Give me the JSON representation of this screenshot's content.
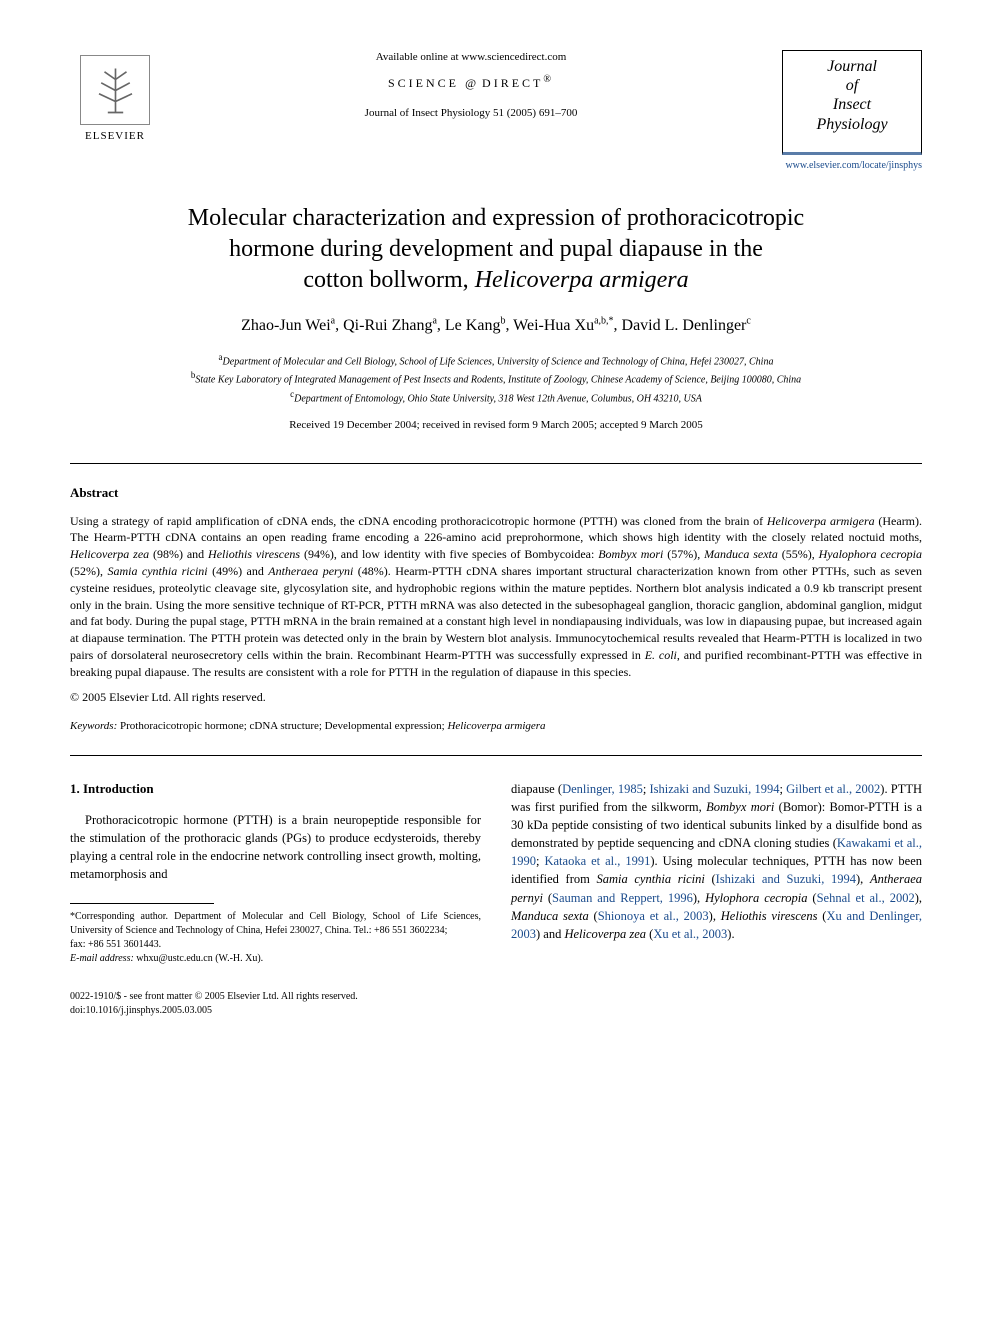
{
  "header": {
    "publisher": "ELSEVIER",
    "available_online": "Available online at www.sciencedirect.com",
    "science_direct": "SCIENCE",
    "science_direct2": "DIRECT",
    "journal_ref": "Journal of Insect Physiology 51 (2005) 691–700",
    "journal_box_line1": "Journal",
    "journal_box_line2": "of",
    "journal_box_line3": "Insect",
    "journal_box_line4": "Physiology",
    "journal_link": "www.elsevier.com/locate/jinsphys"
  },
  "title": {
    "line1": "Molecular characterization and expression of prothoracicotropic",
    "line2": "hormone during development and pupal diapause in the",
    "line3_pre": "cotton bollworm, ",
    "line3_species": "Helicoverpa armigera"
  },
  "authors": [
    {
      "name": "Zhao-Jun Wei",
      "sup": "a"
    },
    {
      "name": "Qi-Rui Zhang",
      "sup": "a"
    },
    {
      "name": "Le Kang",
      "sup": "b"
    },
    {
      "name": "Wei-Hua Xu",
      "sup": "a,b,*"
    },
    {
      "name": "David L. Denlinger",
      "sup": "c"
    }
  ],
  "affiliations": [
    {
      "sup": "a",
      "text": "Department of Molecular and Cell Biology, School of Life Sciences, University of Science and Technology of China, Hefei 230027, China"
    },
    {
      "sup": "b",
      "text": "State Key Laboratory of Integrated Management of Pest Insects and Rodents, Institute of Zoology, Chinese Academy of Science, Beijing 100080, China"
    },
    {
      "sup": "c",
      "text": "Department of Entomology, Ohio State University, 318 West 12th Avenue, Columbus, OH 43210, USA"
    }
  ],
  "dates": "Received 19 December 2004; received in revised form 9 March 2005; accepted 9 March 2005",
  "abstract": {
    "heading": "Abstract",
    "body_parts": [
      {
        "t": "Using a strategy of rapid amplification of cDNA ends, the cDNA encoding prothoracicotropic hormone (PTTH) was cloned from the brain of "
      },
      {
        "t": "Helicoverpa armigera",
        "i": true
      },
      {
        "t": " (Hearm). The Hearm-PTTH cDNA contains an open reading frame encoding a 226-amino acid preprohormone, which shows high identity with the closely related noctuid moths, "
      },
      {
        "t": "Helicoverpa zea",
        "i": true
      },
      {
        "t": " (98%) and "
      },
      {
        "t": "Heliothis virescens",
        "i": true
      },
      {
        "t": " (94%), and low identity with five species of Bombycoidea: "
      },
      {
        "t": "Bombyx mori",
        "i": true
      },
      {
        "t": " (57%), "
      },
      {
        "t": "Manduca sexta",
        "i": true
      },
      {
        "t": " (55%), "
      },
      {
        "t": "Hyalophora cecropia",
        "i": true
      },
      {
        "t": " (52%), "
      },
      {
        "t": "Samia cynthia ricini",
        "i": true
      },
      {
        "t": " (49%) and "
      },
      {
        "t": "Antheraea peryni",
        "i": true
      },
      {
        "t": " (48%). Hearm-PTTH cDNA shares important structural characterization known from other PTTHs, such as seven cysteine residues, proteolytic cleavage site, glycosylation site, and hydrophobic regions within the mature peptides. Northern blot analysis indicated a 0.9 kb transcript present only in the brain. Using the more sensitive technique of RT-PCR, PTTH mRNA was also detected in the subesophageal ganglion, thoracic ganglion, abdominal ganglion, midgut and fat body. During the pupal stage, PTTH mRNA in the brain remained at a constant high level in nondiapausing individuals, was low in diapausing pupae, but increased again at diapause termination. The PTTH protein was detected only in the brain by Western blot analysis. Immunocytochemical results revealed that Hearm-PTTH is localized in two pairs of dorsolateral neurosecretory cells within the brain. Recombinant Hearm-PTTH was successfully expressed in "
      },
      {
        "t": "E. coli",
        "i": true
      },
      {
        "t": ", and purified recombinant-PTTH was effective in breaking pupal diapause. The results are consistent with a role for PTTH in the regulation of diapause in this species."
      }
    ],
    "copyright": "© 2005 Elsevier Ltd. All rights reserved."
  },
  "keywords": {
    "label": "Keywords:",
    "text_pre": " Prothoracicotropic hormone; cDNA structure; Developmental expression; ",
    "species": "Helicoverpa armigera"
  },
  "intro": {
    "heading": "1. Introduction",
    "col1_parts": [
      {
        "t": "Prothoracicotropic hormone (PTTH) is a brain neuropeptide responsible for the stimulation of the prothoracic glands (PGs) to produce ecdysteroids, thereby playing a central role in the endocrine network controlling insect growth, molting, metamorphosis and"
      }
    ],
    "col2_parts": [
      {
        "t": "diapause ("
      },
      {
        "t": "Denlinger, 1985",
        "c": true
      },
      {
        "t": "; "
      },
      {
        "t": "Ishizaki and Suzuki, 1994",
        "c": true
      },
      {
        "t": "; "
      },
      {
        "t": "Gilbert et al., 2002",
        "c": true
      },
      {
        "t": "). PTTH was first purified from the silkworm, "
      },
      {
        "t": "Bombyx mori",
        "i": true
      },
      {
        "t": " (Bomor): Bomor-PTTH is a 30 kDa peptide consisting of two identical subunits linked by a disulfide bond as demonstrated by peptide sequencing and cDNA cloning studies ("
      },
      {
        "t": "Kawakami et al., 1990",
        "c": true
      },
      {
        "t": "; "
      },
      {
        "t": "Kataoka et al., 1991",
        "c": true
      },
      {
        "t": "). Using molecular techniques, PTTH has now been identified from "
      },
      {
        "t": "Samia cynthia ricini",
        "i": true
      },
      {
        "t": " ("
      },
      {
        "t": "Ishizaki and Suzuki, 1994",
        "c": true
      },
      {
        "t": "), "
      },
      {
        "t": "Antheraea pernyi",
        "i": true
      },
      {
        "t": " ("
      },
      {
        "t": "Sauman and Reppert, 1996",
        "c": true
      },
      {
        "t": "), "
      },
      {
        "t": "Hylophora cecropia",
        "i": true
      },
      {
        "t": " ("
      },
      {
        "t": "Sehnal et al., 2002",
        "c": true
      },
      {
        "t": "), "
      },
      {
        "t": "Manduca sexta",
        "i": true
      },
      {
        "t": " ("
      },
      {
        "t": "Shionoya et al., 2003",
        "c": true
      },
      {
        "t": "), "
      },
      {
        "t": "Heliothis virescens",
        "i": true
      },
      {
        "t": " ("
      },
      {
        "t": "Xu and Denlinger, 2003",
        "c": true
      },
      {
        "t": ") and "
      },
      {
        "t": "Helicoverpa zea",
        "i": true
      },
      {
        "t": " ("
      },
      {
        "t": "Xu et al., 2003",
        "c": true
      },
      {
        "t": ")."
      }
    ]
  },
  "footnote": {
    "corr_label": "*Corresponding author. Department of Molecular and Cell Biology, School of Life Sciences, University of Science and Technology of China, Hefei 230027, China. Tel.: +86 551 3602234;",
    "fax": "fax: +86 551 3601443.",
    "email_label": "E-mail address:",
    "email": " whxu@ustc.edu.cn (W.-H. Xu)."
  },
  "footer": {
    "left1": "0022-1910/$ - see front matter © 2005 Elsevier Ltd. All rights reserved.",
    "left2": "doi:10.1016/j.jinsphys.2005.03.005"
  },
  "colors": {
    "link": "#1a4b8c",
    "rule": "#000000",
    "journal_border": "#5a7ca8"
  }
}
